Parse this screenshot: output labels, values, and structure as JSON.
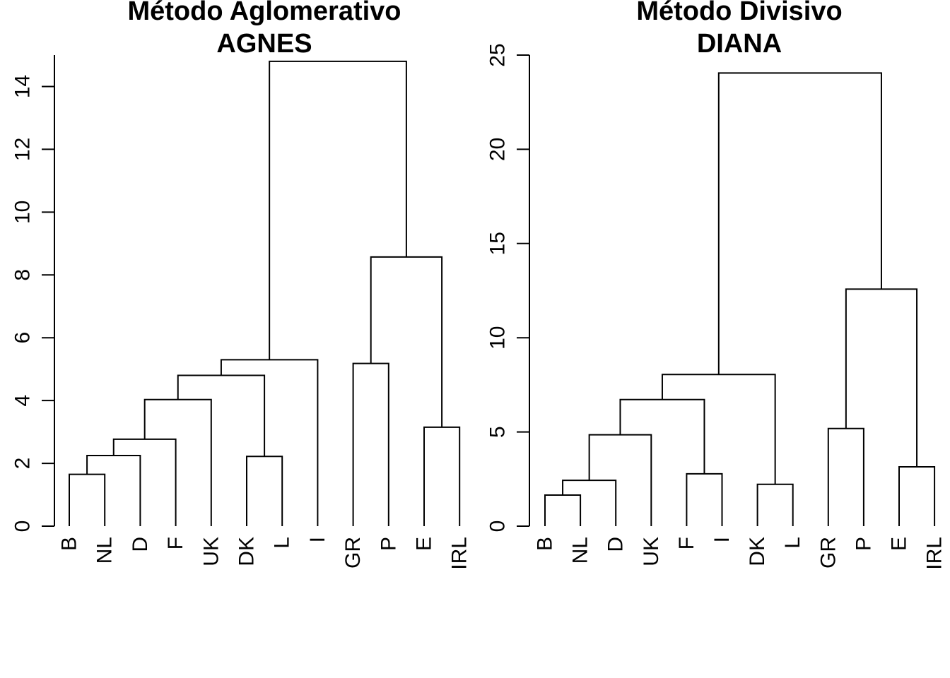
{
  "chart_data": [
    {
      "type": "dendrogram",
      "title": "Método Aglomerativo",
      "subtitle": "AGNES",
      "ylim": [
        0,
        15
      ],
      "yticks": [
        0,
        2,
        4,
        6,
        8,
        10,
        12,
        14
      ],
      "leaves": [
        "B",
        "NL",
        "D",
        "F",
        "UK",
        "DK",
        "L",
        "I",
        "GR",
        "P",
        "E",
        "IRL"
      ],
      "merges": [
        {
          "left": "B",
          "right": "NL",
          "height": 1.65
        },
        {
          "left": 0,
          "right": "D",
          "height": 2.25
        },
        {
          "left": 1,
          "right": "F",
          "height": 2.77
        },
        {
          "left": 2,
          "right": "UK",
          "height": 4.03
        },
        {
          "left": "DK",
          "right": "L",
          "height": 2.22
        },
        {
          "left": 3,
          "right": 4,
          "height": 4.8
        },
        {
          "left": 5,
          "right": "I",
          "height": 5.3
        },
        {
          "left": "GR",
          "right": "P",
          "height": 5.18
        },
        {
          "left": "E",
          "right": "IRL",
          "height": 3.15
        },
        {
          "left": 7,
          "right": 8,
          "height": 8.57
        },
        {
          "left": 6,
          "right": 9,
          "height": 14.8
        }
      ]
    },
    {
      "type": "dendrogram",
      "title": "Método Divisivo",
      "subtitle": "DIANA",
      "ylim": [
        0,
        25
      ],
      "yticks": [
        0,
        5,
        10,
        15,
        20,
        25
      ],
      "leaves": [
        "B",
        "NL",
        "D",
        "UK",
        "F",
        "I",
        "DK",
        "L",
        "GR",
        "P",
        "E",
        "IRL"
      ],
      "merges": [
        {
          "left": "B",
          "right": "NL",
          "height": 1.65
        },
        {
          "left": 0,
          "right": "D",
          "height": 2.43
        },
        {
          "left": 1,
          "right": "UK",
          "height": 4.85
        },
        {
          "left": "F",
          "right": "I",
          "height": 2.78
        },
        {
          "left": 2,
          "right": 3,
          "height": 6.72
        },
        {
          "left": "DK",
          "right": "L",
          "height": 2.22
        },
        {
          "left": 4,
          "right": 5,
          "height": 8.05
        },
        {
          "left": "GR",
          "right": "P",
          "height": 5.18
        },
        {
          "left": "E",
          "right": "IRL",
          "height": 3.15
        },
        {
          "left": 7,
          "right": 8,
          "height": 12.58
        },
        {
          "left": 6,
          "right": 9,
          "height": 24.05
        }
      ]
    }
  ]
}
